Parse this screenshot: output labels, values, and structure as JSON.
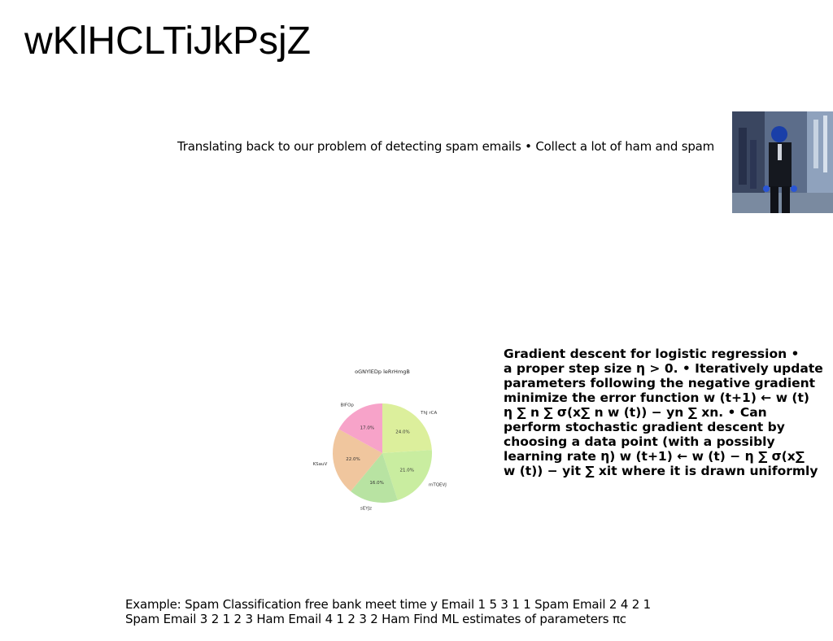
{
  "slide": {
    "title": "wKlHCLTiJkPsjZ",
    "intro_text": "Translating back to our problem of detecting spam emails • Collect a lot of ham and spam",
    "gradient_lines": [
      "Gradient descent for logistic regression •",
      "a proper step size η > 0. • Iteratively update",
      "parameters following the negative gradient",
      "minimize the error function w (t+1) ← w (t)",
      "η ∑ n ∑ σ(x∑ n w (t)) − yn ∑ xn. • Can",
      "perform stochastic gradient descent by",
      "choosing a data point (with a possibly",
      "learning rate η) w (t+1) ← w (t) − η ∑ σ(x∑",
      "w (t)) − yit ∑ xit where it is drawn uniformly"
    ],
    "example_lines": [
      "Example: Spam Classification free bank meet time y Email 1 5 3 1 1 Spam Email 2 4 2 1",
      "Spam Email 3 2 1 2 3 Ham Email 4 1 2 3 2 Ham Find ML estimates of parameters πc"
    ]
  },
  "chart_data": {
    "type": "pie",
    "title": "oGNYlEDp leRrHmgB",
    "slices": [
      {
        "label": "ThJ rCA",
        "value": 24.0,
        "pct_label": "24.0%",
        "color": "#dcef9c"
      },
      {
        "label": "mTQEVJ",
        "value": 21.0,
        "pct_label": "21.0%",
        "color": "#c9eda0"
      },
      {
        "label": "sEYJz",
        "value": 16.0,
        "pct_label": "16.0%",
        "color": "#b8e3a2"
      },
      {
        "label": "KSauV",
        "value": 22.0,
        "pct_label": "22.0%",
        "color": "#f0c69e"
      },
      {
        "label": "BIFOp",
        "value": 17.0,
        "pct_label": "17.0%",
        "color": "#f7a3c9"
      }
    ],
    "start_angle_deg": 90,
    "direction": "clockwise",
    "legend": "none"
  }
}
